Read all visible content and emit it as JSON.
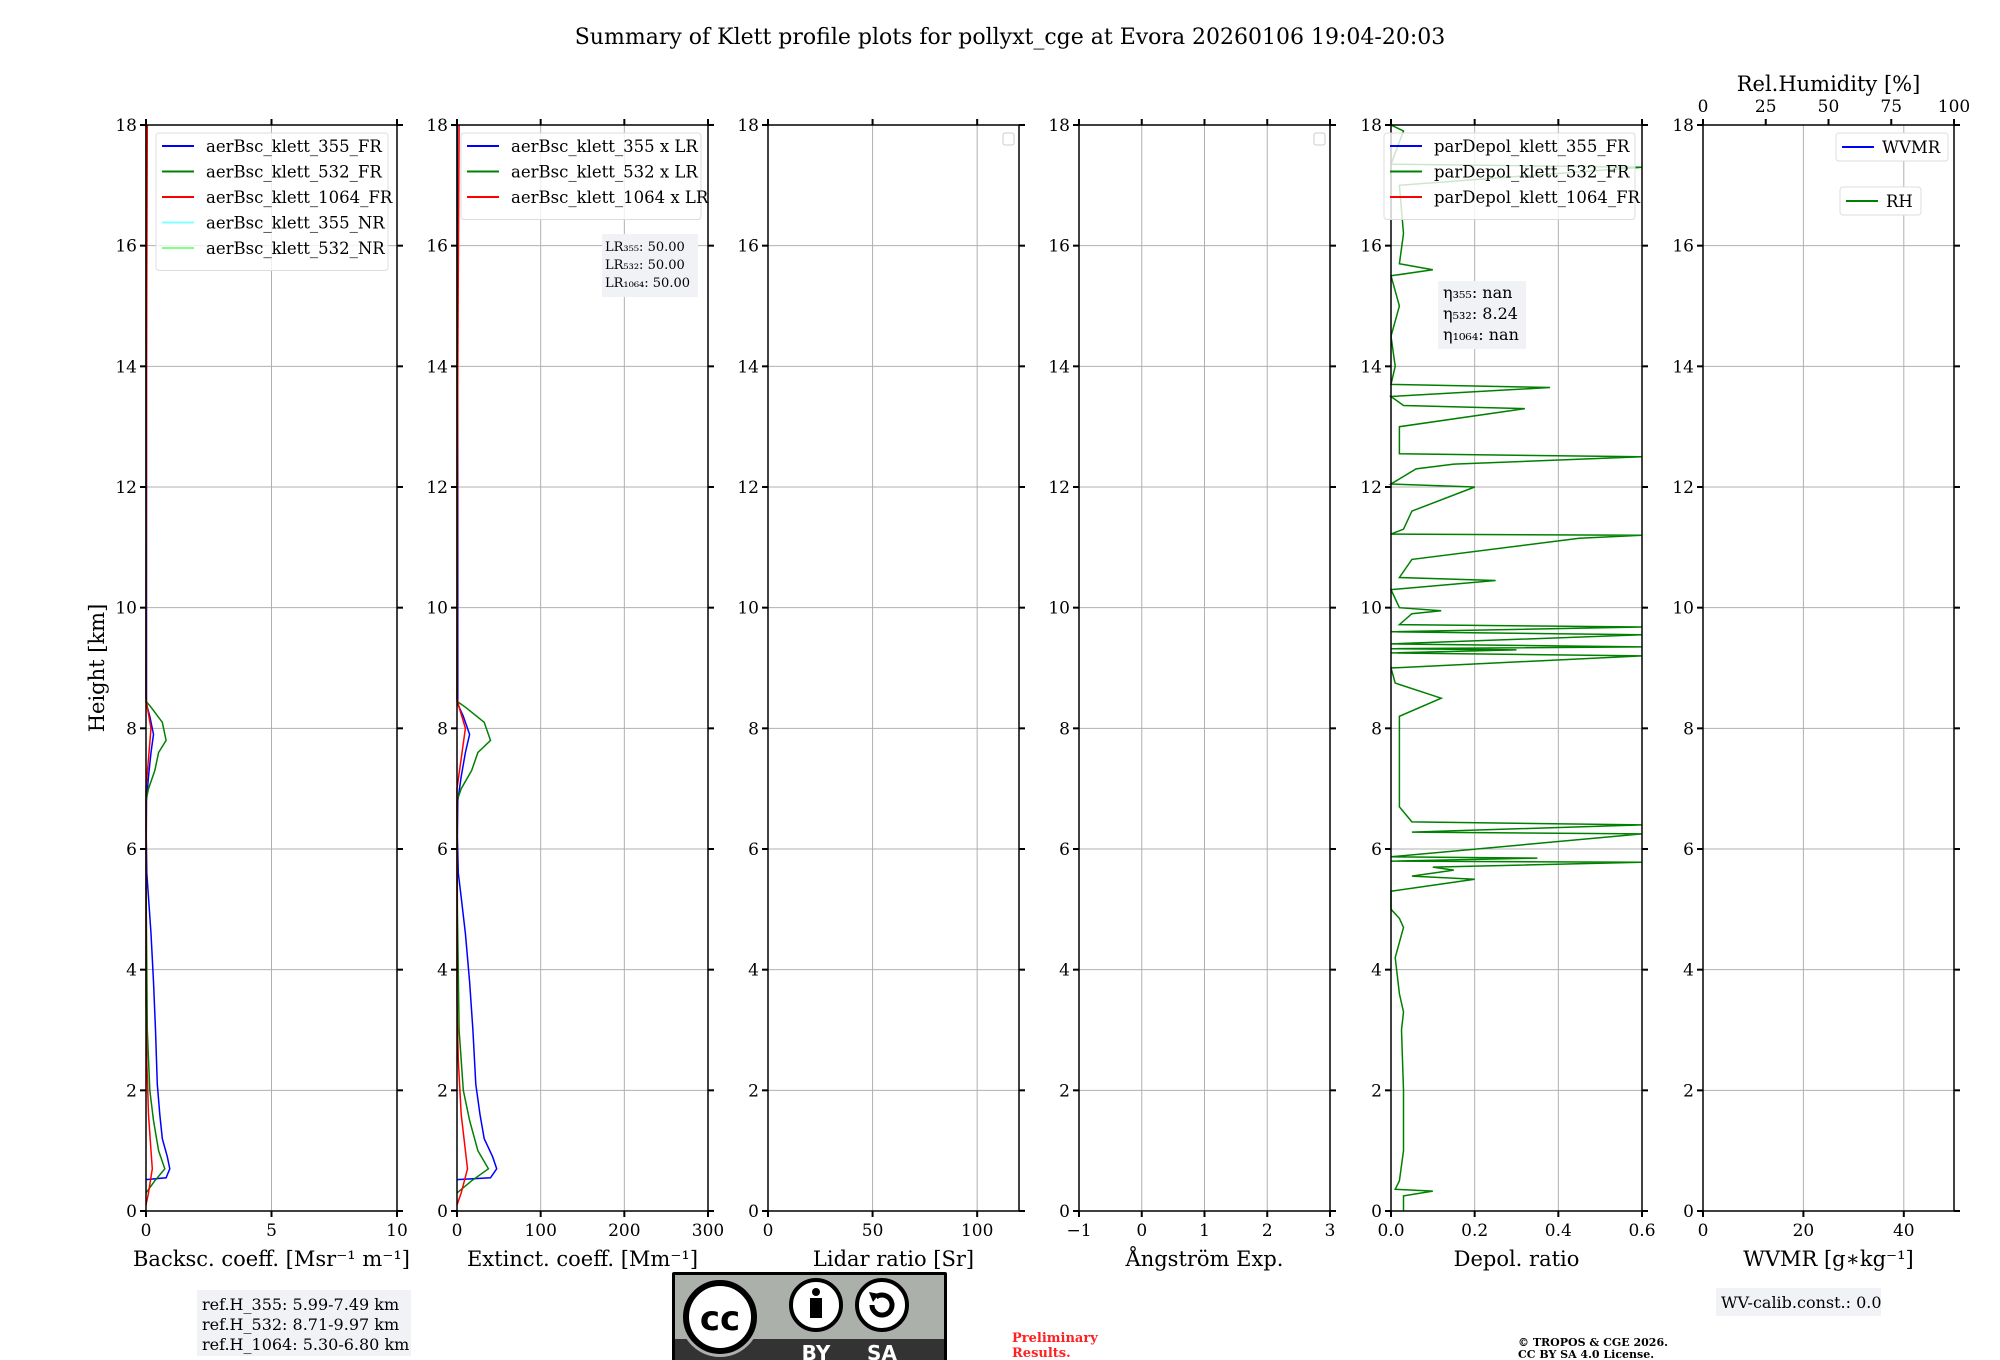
{
  "title": "Summary of Klett profile plots for pollyxt_cge at Evora 20260106 19:04-20:03",
  "ylabel": "Height [km]",
  "ref_heights": [
    "ref.H_355: 5.99-7.49 km",
    "ref.H_532: 8.71-9.97 km",
    "ref.H_1064: 5.30-6.80 km"
  ],
  "wv_calib": "WV-calib.const.: 0.0",
  "preliminary": [
    "Preliminary",
    "Results."
  ],
  "copyright": [
    "© TROPOS & CGE 2026.",
    "CC BY SA 4.0 License."
  ],
  "license_logo": {
    "by": "BY",
    "sa": "SA",
    "cc": "cc"
  },
  "chart_data": [
    {
      "type": "line",
      "id": "backscatter",
      "xlabel": "Backsc. coeff. [Msr⁻¹ m⁻¹]",
      "xlim": [
        0,
        10
      ],
      "xticks": [
        0,
        5,
        10
      ],
      "ylim": [
        0,
        18
      ],
      "yticks": [
        0,
        2,
        4,
        6,
        8,
        10,
        12,
        14,
        16,
        18
      ],
      "grid": true,
      "legend": "top-right",
      "series": [
        {
          "name": "aerBsc_klett_355_FR",
          "color": "#0000ff",
          "points": [
            [
              0,
              0.52
            ],
            [
              0.8,
              0.55
            ],
            [
              0.95,
              0.7
            ],
            [
              0.85,
              0.9
            ],
            [
              0.65,
              1.2
            ],
            [
              0.55,
              1.6
            ],
            [
              0.45,
              2.1
            ],
            [
              0.38,
              3
            ],
            [
              0.3,
              3.8
            ],
            [
              0.2,
              4.6
            ],
            [
              0.1,
              5.2
            ],
            [
              0.03,
              5.6
            ],
            [
              0.01,
              6.2
            ],
            [
              0.02,
              6.8
            ],
            [
              0.1,
              7.2
            ],
            [
              0.2,
              7.6
            ],
            [
              0.3,
              7.9
            ],
            [
              0.15,
              8.2
            ],
            [
              0.02,
              8.4
            ],
            [
              0.02,
              12
            ],
            [
              0.01,
              18
            ]
          ]
        },
        {
          "name": "aerBsc_klett_532_FR",
          "color": "#008000",
          "points": [
            [
              0,
              0.3
            ],
            [
              0.35,
              0.5
            ],
            [
              0.75,
              0.7
            ],
            [
              0.5,
              1.0
            ],
            [
              0.3,
              1.5
            ],
            [
              0.15,
              2.0
            ],
            [
              0.05,
              3
            ],
            [
              0.01,
              5
            ],
            [
              0,
              6.8
            ],
            [
              0.1,
              7.0
            ],
            [
              0.35,
              7.3
            ],
            [
              0.5,
              7.6
            ],
            [
              0.8,
              7.8
            ],
            [
              0.65,
              8.1
            ],
            [
              0.2,
              8.35
            ],
            [
              0,
              8.45
            ],
            [
              0,
              18
            ]
          ]
        },
        {
          "name": "aerBsc_klett_1064_FR",
          "color": "#ff0000",
          "points": [
            [
              0,
              0.1
            ],
            [
              0.1,
              0.3
            ],
            [
              0.25,
              0.7
            ],
            [
              0.2,
              1.0
            ],
            [
              0.1,
              1.6
            ],
            [
              0.03,
              2.5
            ],
            [
              0,
              3.5
            ],
            [
              0,
              7
            ],
            [
              0.1,
              7.5
            ],
            [
              0.2,
              8.0
            ],
            [
              0.05,
              8.35
            ],
            [
              0,
              8.5
            ],
            [
              0.02,
              14
            ],
            [
              0.05,
              18
            ]
          ]
        },
        {
          "name": "aerBsc_klett_355_NR",
          "color": "#80ffff",
          "points": []
        },
        {
          "name": "aerBsc_klett_532_NR",
          "color": "#80ff80",
          "points": []
        }
      ]
    },
    {
      "type": "line",
      "id": "extinction",
      "xlabel": "Extinct. coeff. [Mm⁻¹]",
      "xlim": [
        0,
        300
      ],
      "xticks": [
        0,
        100,
        200,
        300
      ],
      "ylim": [
        0,
        18
      ],
      "yticks": [
        0,
        2,
        4,
        6,
        8,
        10,
        12,
        14,
        16,
        18
      ],
      "grid": true,
      "legend": "top-right",
      "derived_from": "backscatter",
      "lidar_ratio": [
        50,
        50,
        50
      ],
      "series": [
        {
          "name": "aerBsc_klett_355 x LR",
          "color": "#0000ff"
        },
        {
          "name": "aerBsc_klett_532 x LR",
          "color": "#008000"
        },
        {
          "name": "aerBsc_klett_1064 x LR",
          "color": "#ff0000"
        }
      ],
      "annotation": [
        "LR₃₅₅: 50.00",
        "LR₅₃₂: 50.00",
        "LR₁₀₆₄: 50.00"
      ]
    },
    {
      "type": "line",
      "id": "lidar-ratio",
      "xlabel": "Lidar ratio [Sr]",
      "xlim": [
        0,
        120
      ],
      "xticks": [
        0,
        50,
        100
      ],
      "ylim": [
        0,
        18
      ],
      "yticks": [
        0,
        2,
        4,
        6,
        8,
        10,
        12,
        14,
        16,
        18
      ],
      "grid": true,
      "legend": "top-right",
      "series": []
    },
    {
      "type": "line",
      "id": "angstrom",
      "xlabel": "Ångström Exp.",
      "xlim": [
        -1,
        3
      ],
      "xticks": [
        -1,
        0,
        1,
        2,
        3
      ],
      "xticklabels": [
        "−1",
        "0",
        "1",
        "2",
        "3"
      ],
      "ylim": [
        0,
        18
      ],
      "yticks": [
        0,
        2,
        4,
        6,
        8,
        10,
        12,
        14,
        16,
        18
      ],
      "grid": true,
      "legend": "top-right",
      "series": []
    },
    {
      "type": "line",
      "id": "depol",
      "xlabel": "Depol. ratio",
      "xlim": [
        0,
        0.6
      ],
      "xticks": [
        0,
        0.2,
        0.4,
        0.6
      ],
      "xticklabels": [
        "0.0",
        "0.2",
        "0.4",
        "0.6"
      ],
      "ylim": [
        0,
        18
      ],
      "yticks": [
        0,
        2,
        4,
        6,
        8,
        10,
        12,
        14,
        16,
        18
      ],
      "grid": true,
      "legend": "top-left",
      "series": [
        {
          "name": "parDepol_klett_355_FR",
          "color": "#0000ff",
          "points": []
        },
        {
          "name": "parDepol_klett_532_FR",
          "color": "#008000",
          "points": [
            [
              0.03,
              0
            ],
            [
              0.03,
              0.25
            ],
            [
              0.1,
              0.33
            ],
            [
              0.01,
              0.36
            ],
            [
              0.02,
              0.5
            ],
            [
              0.03,
              1
            ],
            [
              0.03,
              2
            ],
            [
              0.025,
              3
            ],
            [
              0.03,
              3.3
            ],
            [
              0.02,
              3.6
            ],
            [
              0.01,
              4.2
            ],
            [
              0.03,
              4.7
            ],
            [
              0.02,
              4.85
            ],
            [
              0,
              5.0
            ],
            [
              0,
              5.3
            ],
            [
              0.05,
              5.35
            ],
            [
              0.2,
              5.5
            ],
            [
              0.05,
              5.55
            ],
            [
              0.15,
              5.65
            ],
            [
              0.1,
              5.7
            ],
            [
              0.6,
              5.78
            ],
            [
              0,
              5.8
            ],
            [
              0.35,
              5.85
            ],
            [
              0,
              5.87
            ],
            [
              0.6,
              6.25
            ],
            [
              0.05,
              6.28
            ],
            [
              0.6,
              6.4
            ],
            [
              0.05,
              6.45
            ],
            [
              0.02,
              6.7
            ],
            [
              0.02,
              7.2
            ],
            [
              0.02,
              8.2
            ],
            [
              0.12,
              8.5
            ],
            [
              0.01,
              8.75
            ],
            [
              0,
              9.0
            ],
            [
              0.6,
              9.2
            ],
            [
              0,
              9.25
            ],
            [
              0.3,
              9.3
            ],
            [
              0,
              9.32
            ],
            [
              0.6,
              9.35
            ],
            [
              0,
              9.4
            ],
            [
              0.6,
              9.55
            ],
            [
              0,
              9.6
            ],
            [
              0.6,
              9.68
            ],
            [
              0.02,
              9.72
            ],
            [
              0.05,
              9.9
            ],
            [
              0.12,
              9.95
            ],
            [
              0.02,
              10.0
            ],
            [
              0,
              10.3
            ],
            [
              0.25,
              10.45
            ],
            [
              0.02,
              10.5
            ],
            [
              0.05,
              10.8
            ],
            [
              0.45,
              11.15
            ],
            [
              0.6,
              11.2
            ],
            [
              0,
              11.22
            ],
            [
              0.03,
              11.3
            ],
            [
              0.05,
              11.6
            ],
            [
              0.2,
              12.0
            ],
            [
              0,
              12.05
            ],
            [
              0.06,
              12.3
            ],
            [
              0.15,
              12.38
            ],
            [
              0.6,
              12.5
            ],
            [
              0.02,
              12.55
            ],
            [
              0.02,
              13.0
            ],
            [
              0.32,
              13.3
            ],
            [
              0.03,
              13.35
            ],
            [
              0,
              13.5
            ],
            [
              0.38,
              13.65
            ],
            [
              0,
              13.7
            ],
            [
              0.01,
              14.0
            ],
            [
              0,
              14.5
            ],
            [
              0.02,
              15.0
            ],
            [
              0,
              15.5
            ],
            [
              0.1,
              15.6
            ],
            [
              0.02,
              15.7
            ],
            [
              0.03,
              16.2
            ],
            [
              0.02,
              17.0
            ],
            [
              0.6,
              17.3
            ],
            [
              0,
              17.35
            ],
            [
              0.03,
              17.9
            ],
            [
              0,
              18
            ]
          ]
        },
        {
          "name": "parDepol_klett_1064_FR",
          "color": "#ff0000",
          "points": []
        }
      ],
      "annotation": [
        "η₃₅₅: nan",
        "η₅₃₂: 8.24",
        "η₁₀₆₄: nan"
      ]
    },
    {
      "type": "line",
      "id": "wvmr-rh",
      "xlabel": "WVMR [g∗kg⁻¹]",
      "xlim": [
        0,
        50
      ],
      "xticks": [
        0,
        20,
        40
      ],
      "x2label": "Rel.Humidity [%]",
      "x2lim": [
        0,
        100
      ],
      "x2ticks": [
        0,
        25,
        50,
        75,
        100
      ],
      "ylim": [
        0,
        18
      ],
      "yticks": [
        0,
        2,
        4,
        6,
        8,
        10,
        12,
        14,
        16,
        18
      ],
      "grid": true,
      "legend": "top-right",
      "series": [
        {
          "name": "WVMR",
          "color": "#0000ff",
          "points": []
        },
        {
          "name": "RH",
          "color": "#008000",
          "points": []
        }
      ]
    }
  ]
}
